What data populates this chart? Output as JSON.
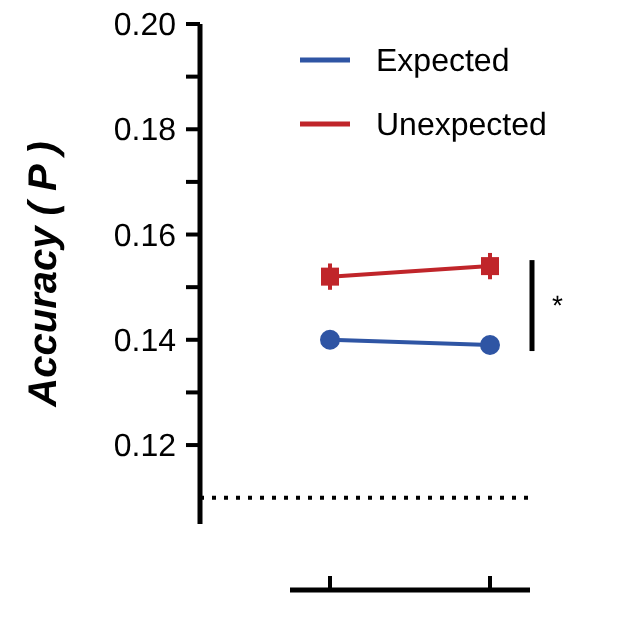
{
  "chart_data": {
    "type": "line",
    "ylabel": "Accuracy ( P )",
    "categories": [
      null,
      null
    ],
    "series": [
      {
        "name": "Expected",
        "color": "#2f55a4",
        "values": [
          0.14,
          0.139
        ],
        "errors": [
          0.0015,
          0.0015
        ],
        "marker": "circle"
      },
      {
        "name": "Unexpected",
        "color": "#c0252a",
        "values": [
          0.152,
          0.154
        ],
        "errors": [
          0.0025,
          0.0025
        ],
        "marker": "square"
      }
    ],
    "ylim": [
      0.105,
      0.2
    ],
    "yticks": [
      0.12,
      {
        "value": 0.13,
        "label": null
      },
      0.14,
      {
        "value": 0.15,
        "label": null
      },
      0.16,
      {
        "value": 0.17,
        "label": null
      },
      0.18,
      {
        "value": 0.19,
        "label": null
      },
      {
        "value": 0.2,
        "label": "0.20"
      }
    ],
    "ref_lines": [
      {
        "axis": "y",
        "value": 0.11,
        "line_style": "dotted",
        "color": "#000000"
      }
    ],
    "annotations": [
      "*"
    ],
    "legend": "top right",
    "grid": false
  }
}
